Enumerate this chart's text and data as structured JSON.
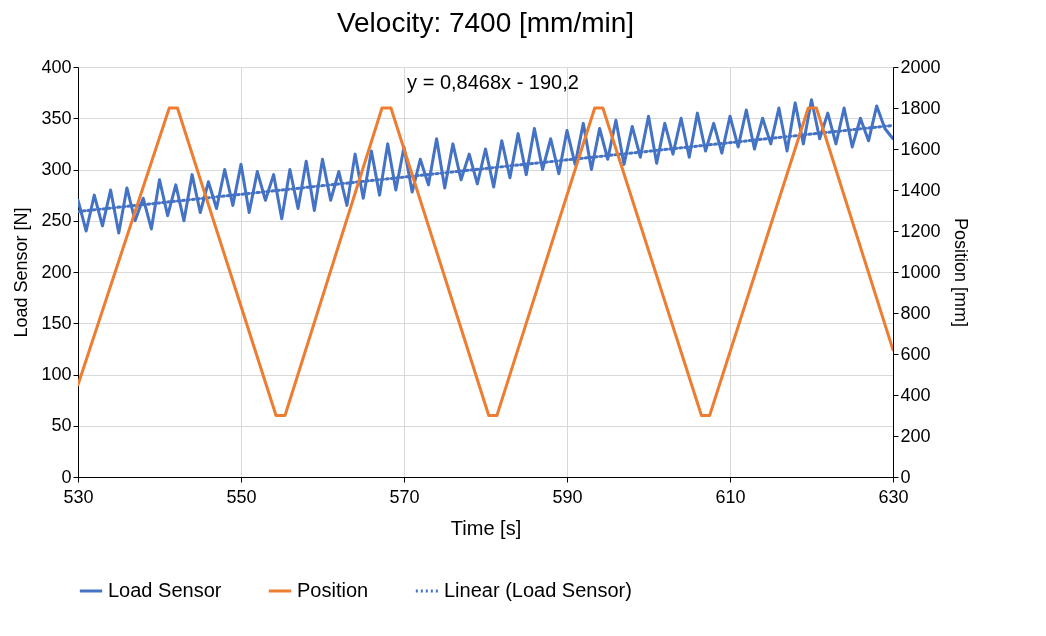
{
  "chart_data": {
    "type": "line",
    "title": "Velocity: 7400 [mm/min]",
    "xlabel": "Time [s]",
    "ylabel": "Load Sensor [N]",
    "y2label": "Position [mm]",
    "x": [
      530,
      531,
      532,
      533,
      534,
      535,
      536,
      537,
      538,
      539,
      540,
      541,
      542,
      543,
      544,
      545,
      546,
      547,
      548,
      549,
      550,
      551,
      552,
      553,
      554,
      555,
      556,
      557,
      558,
      559,
      560,
      561,
      562,
      563,
      564,
      565,
      566,
      567,
      568,
      569,
      570,
      571,
      572,
      573,
      574,
      575,
      576,
      577,
      578,
      579,
      580,
      581,
      582,
      583,
      584,
      585,
      586,
      587,
      588,
      589,
      590,
      591,
      592,
      593,
      594,
      595,
      596,
      597,
      598,
      599,
      600,
      601,
      602,
      603,
      604,
      605,
      606,
      607,
      608,
      609,
      610,
      611,
      612,
      613,
      614,
      615,
      616,
      617,
      618,
      619,
      620,
      621,
      622,
      623,
      624,
      625,
      626,
      627,
      628,
      629,
      630
    ],
    "series": [
      {
        "name": "Load Sensor",
        "color": "#4472c4",
        "values": [
          270,
          240,
          275,
          245,
          280,
          238,
          282,
          250,
          272,
          242,
          290,
          255,
          285,
          250,
          295,
          258,
          288,
          262,
          300,
          265,
          305,
          258,
          298,
          270,
          295,
          252,
          300,
          262,
          308,
          260,
          310,
          270,
          298,
          265,
          315,
          272,
          318,
          275,
          325,
          280,
          322,
          278,
          310,
          285,
          330,
          282,
          325,
          290,
          315,
          286,
          320,
          283,
          328,
          292,
          335,
          295,
          340,
          300,
          330,
          296,
          338,
          305,
          345,
          300,
          340,
          310,
          348,
          305,
          342,
          312,
          352,
          306,
          345,
          315,
          350,
          312,
          355,
          318,
          345,
          316,
          352,
          322,
          358,
          320,
          350,
          325,
          360,
          318,
          365,
          325,
          368,
          330,
          355,
          325,
          360,
          322,
          350,
          328,
          362,
          340,
          330
        ]
      },
      {
        "name": "Position",
        "color": "#ed7d31",
        "axis": "y2",
        "x": [
          530,
          541.2,
          542.2,
          554.3,
          555.4,
          567.3,
          568.4,
          580.4,
          581.4,
          593.4,
          594.4,
          606.5,
          607.5,
          619.6,
          620.6,
          630
        ],
        "values": [
          450,
          1800,
          1800,
          300,
          300,
          1800,
          1800,
          300,
          300,
          1800,
          1800,
          300,
          300,
          1800,
          1800,
          620
        ]
      },
      {
        "name": "Linear (Load Sensor)",
        "color": "#4472c4",
        "type": "line",
        "line_style": "dotted",
        "x": [
          530,
          630
        ],
        "values": [
          259,
          343
        ]
      }
    ],
    "annotations": [
      "y = 0,8468x - 190,2"
    ],
    "xlim": [
      530,
      630
    ],
    "xticks": [
      530,
      550,
      570,
      590,
      610,
      630
    ],
    "ylim": [
      0,
      400
    ],
    "yticks": [
      0,
      50,
      100,
      150,
      200,
      250,
      300,
      350,
      400
    ],
    "y2lim": [
      0,
      2000
    ],
    "y2ticks": [
      0,
      200,
      400,
      600,
      800,
      1000,
      1200,
      1400,
      1600,
      1800,
      2000
    ],
    "grid": true,
    "legend": "bottom",
    "line_style": "solid",
    "marker": "none"
  }
}
